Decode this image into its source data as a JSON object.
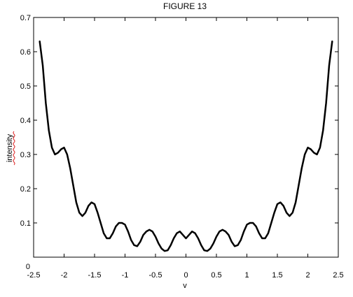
{
  "chart_data": {
    "type": "line",
    "title": "FIGURE 13",
    "xlabel": "v",
    "ylabel": "intensity",
    "xlim": [
      -2.5,
      2.5
    ],
    "ylim": [
      0,
      0.7
    ],
    "x_ticks": [
      -2.5,
      -2,
      -1.5,
      -1,
      -0.5,
      0,
      0.5,
      1,
      1.5,
      2,
      2.5
    ],
    "x_tick_labels": [
      "-2.5",
      "-2",
      "-1.5",
      "-1",
      "-0.5",
      "0",
      "0.5",
      "1",
      "1.5",
      "2",
      "2.5"
    ],
    "y_ticks": [
      0,
      0.1,
      0.2,
      0.3,
      0.4,
      0.5,
      0.6,
      0.7
    ],
    "y_tick_labels": [
      "0",
      "0.1",
      "0.2",
      "0.3",
      "0.4",
      "0.5",
      "0.6",
      "0.7"
    ],
    "grid": false,
    "series": [
      {
        "color": "#000000",
        "x": [
          -2.4,
          -2.35,
          -2.3,
          -2.25,
          -2.2,
          -2.15,
          -2.1,
          -2.05,
          -2.0,
          -1.95,
          -1.9,
          -1.85,
          -1.8,
          -1.75,
          -1.7,
          -1.65,
          -1.6,
          -1.55,
          -1.5,
          -1.45,
          -1.4,
          -1.35,
          -1.3,
          -1.25,
          -1.2,
          -1.15,
          -1.1,
          -1.05,
          -1.0,
          -0.95,
          -0.9,
          -0.85,
          -0.8,
          -0.75,
          -0.7,
          -0.65,
          -0.6,
          -0.55,
          -0.5,
          -0.45,
          -0.4,
          -0.35,
          -0.3,
          -0.25,
          -0.2,
          -0.15,
          -0.1,
          -0.05,
          0.0,
          0.05,
          0.1,
          0.15,
          0.2,
          0.25,
          0.3,
          0.35,
          0.4,
          0.45,
          0.5,
          0.55,
          0.6,
          0.65,
          0.7,
          0.75,
          0.8,
          0.85,
          0.9,
          0.95,
          1.0,
          1.05,
          1.1,
          1.15,
          1.2,
          1.25,
          1.3,
          1.35,
          1.4,
          1.45,
          1.5,
          1.55,
          1.6,
          1.65,
          1.7,
          1.75,
          1.8,
          1.85,
          1.9,
          1.95,
          2.0,
          2.05,
          2.1,
          2.15,
          2.2,
          2.25,
          2.3,
          2.35,
          2.4
        ],
        "y": [
          0.63,
          0.56,
          0.45,
          0.37,
          0.32,
          0.3,
          0.305,
          0.315,
          0.32,
          0.3,
          0.26,
          0.21,
          0.16,
          0.13,
          0.12,
          0.13,
          0.15,
          0.16,
          0.155,
          0.13,
          0.1,
          0.07,
          0.055,
          0.055,
          0.07,
          0.09,
          0.1,
          0.1,
          0.095,
          0.075,
          0.05,
          0.035,
          0.032,
          0.045,
          0.065,
          0.075,
          0.08,
          0.075,
          0.06,
          0.04,
          0.025,
          0.018,
          0.02,
          0.035,
          0.055,
          0.07,
          0.075,
          0.065,
          0.055,
          0.065,
          0.075,
          0.07,
          0.055,
          0.035,
          0.02,
          0.018,
          0.025,
          0.04,
          0.06,
          0.075,
          0.08,
          0.075,
          0.065,
          0.045,
          0.032,
          0.035,
          0.05,
          0.075,
          0.095,
          0.1,
          0.1,
          0.09,
          0.07,
          0.055,
          0.055,
          0.07,
          0.1,
          0.13,
          0.155,
          0.16,
          0.15,
          0.13,
          0.12,
          0.13,
          0.16,
          0.21,
          0.26,
          0.3,
          0.32,
          0.315,
          0.305,
          0.3,
          0.32,
          0.37,
          0.45,
          0.56,
          0.63
        ]
      }
    ]
  }
}
